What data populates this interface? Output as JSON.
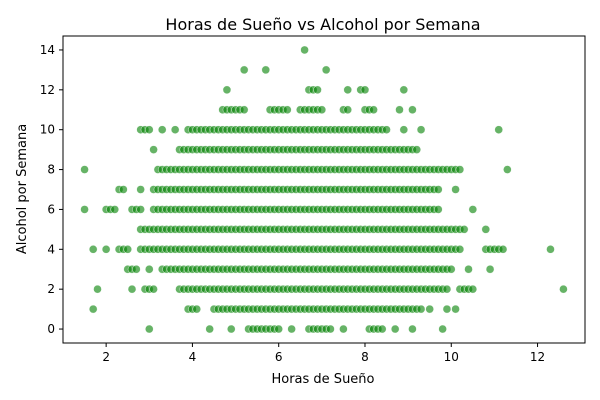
{
  "chart_data": {
    "type": "scatter",
    "title": "Horas de Sueño vs Alcohol por Semana",
    "xlabel": "Horas de Sueño",
    "ylabel": "Alcohol por Semana",
    "xlim": [
      1.0,
      13.1
    ],
    "ylim": [
      -0.7,
      14.7
    ],
    "xticks": [
      2,
      4,
      6,
      8,
      10,
      12
    ],
    "yticks": [
      0,
      2,
      4,
      6,
      8,
      10,
      12,
      14
    ],
    "grid": false,
    "legend": "none",
    "marker_color": "#008000",
    "marker_alpha": 0.6,
    "y_value_x_ranges": [
      {
        "y": 0,
        "segments": [
          [
            3.0,
            3.0
          ],
          [
            4.4,
            4.4
          ],
          [
            4.9,
            4.9
          ],
          [
            5.3,
            6.0
          ],
          [
            6.3,
            6.3
          ],
          [
            6.7,
            7.2
          ],
          [
            7.5,
            7.5
          ],
          [
            8.1,
            8.4
          ],
          [
            8.7,
            8.7
          ],
          [
            9.1,
            9.1
          ],
          [
            9.8,
            9.8
          ]
        ]
      },
      {
        "y": 1,
        "segments": [
          [
            1.7,
            1.7
          ],
          [
            3.9,
            4.1
          ],
          [
            4.5,
            9.3
          ],
          [
            9.5,
            9.5
          ],
          [
            9.9,
            9.9
          ],
          [
            10.1,
            10.1
          ]
        ]
      },
      {
        "y": 2,
        "segments": [
          [
            1.8,
            1.8
          ],
          [
            2.6,
            2.6
          ],
          [
            2.9,
            3.1
          ],
          [
            3.7,
            9.9
          ],
          [
            10.2,
            10.5
          ],
          [
            12.6,
            12.6
          ]
        ]
      },
      {
        "y": 3,
        "segments": [
          [
            2.5,
            2.7
          ],
          [
            3.0,
            3.0
          ],
          [
            3.3,
            10.0
          ],
          [
            10.4,
            10.4
          ],
          [
            10.9,
            10.9
          ]
        ]
      },
      {
        "y": 4,
        "segments": [
          [
            1.7,
            1.7
          ],
          [
            2.0,
            2.0
          ],
          [
            2.3,
            2.5
          ],
          [
            2.8,
            10.2
          ],
          [
            10.8,
            11.2
          ],
          [
            12.3,
            12.3
          ]
        ]
      },
      {
        "y": 5,
        "segments": [
          [
            2.8,
            10.3
          ],
          [
            10.8,
            10.8
          ]
        ]
      },
      {
        "y": 6,
        "segments": [
          [
            1.5,
            1.5
          ],
          [
            2.0,
            2.2
          ],
          [
            2.6,
            2.8
          ],
          [
            3.1,
            9.7
          ],
          [
            10.5,
            10.5
          ]
        ]
      },
      {
        "y": 7,
        "segments": [
          [
            2.3,
            2.4
          ],
          [
            2.8,
            2.8
          ],
          [
            3.1,
            9.7
          ],
          [
            10.1,
            10.1
          ]
        ]
      },
      {
        "y": 8,
        "segments": [
          [
            1.5,
            1.5
          ],
          [
            3.2,
            10.2
          ],
          [
            11.3,
            11.3
          ]
        ]
      },
      {
        "y": 9,
        "segments": [
          [
            3.1,
            3.1
          ],
          [
            3.7,
            9.2
          ]
        ]
      },
      {
        "y": 10,
        "segments": [
          [
            2.8,
            3.0
          ],
          [
            3.3,
            3.3
          ],
          [
            3.6,
            3.6
          ],
          [
            3.9,
            8.5
          ],
          [
            8.9,
            8.9
          ],
          [
            9.3,
            9.3
          ],
          [
            11.1,
            11.1
          ]
        ]
      },
      {
        "y": 11,
        "segments": [
          [
            4.7,
            5.2
          ],
          [
            5.8,
            6.2
          ],
          [
            6.5,
            7.0
          ],
          [
            7.5,
            7.6
          ],
          [
            8.0,
            8.2
          ],
          [
            8.8,
            8.8
          ],
          [
            9.1,
            9.1
          ]
        ]
      },
      {
        "y": 12,
        "segments": [
          [
            4.8,
            4.8
          ],
          [
            6.7,
            6.9
          ],
          [
            7.6,
            7.6
          ],
          [
            7.9,
            8.0
          ],
          [
            8.9,
            8.9
          ]
        ]
      },
      {
        "y": 13,
        "segments": [
          [
            5.2,
            5.2
          ],
          [
            5.7,
            5.7
          ],
          [
            7.1,
            7.1
          ]
        ]
      },
      {
        "y": 14,
        "segments": [
          [
            6.6,
            6.6
          ]
        ]
      }
    ],
    "x_step": 0.1
  }
}
